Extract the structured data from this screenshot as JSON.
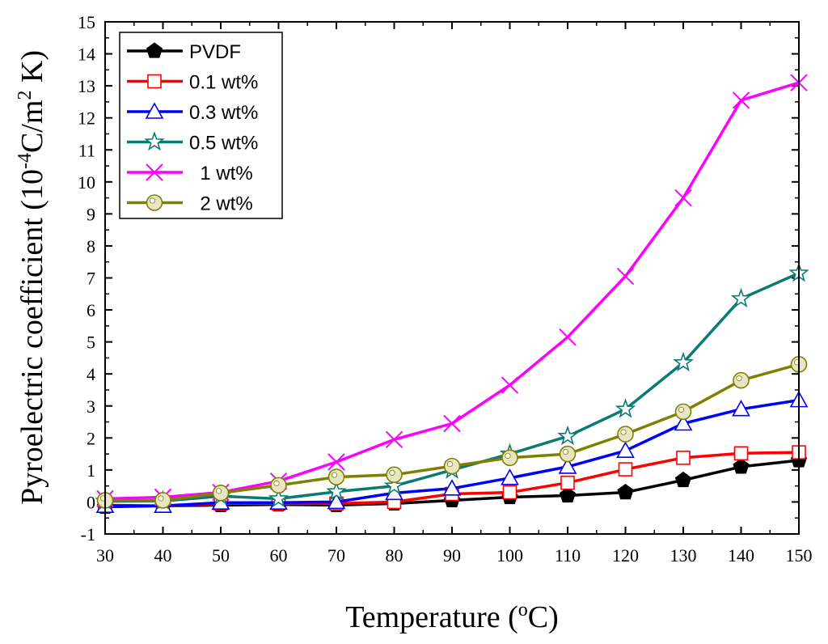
{
  "chart_data": {
    "type": "line",
    "xlabel": "Temperature (°C)",
    "xlabel_parts": {
      "pre": "Temperature (",
      "sup": "o",
      "post": "C)"
    },
    "ylabel": "Pyroelectric coefficient (10^-4C/m^2 K)",
    "ylabel_parts": {
      "pre": "Pyroelectric coefficient (10",
      "sup1": "-4",
      "mid": "C/m",
      "sup2": "2",
      "post": " K)"
    },
    "xlim": [
      30,
      150
    ],
    "ylim": [
      -1,
      15
    ],
    "xticks": [
      30,
      40,
      50,
      60,
      70,
      80,
      90,
      100,
      110,
      120,
      130,
      140,
      150
    ],
    "yticks": [
      -1,
      0,
      1,
      2,
      3,
      4,
      5,
      6,
      7,
      8,
      9,
      10,
      11,
      12,
      13,
      14,
      15
    ],
    "legend_position": "top-left",
    "x": [
      30,
      40,
      50,
      60,
      70,
      80,
      90,
      100,
      110,
      120,
      130,
      140,
      150
    ],
    "series": [
      {
        "name": "PVDF",
        "legend_label": "PVDF",
        "color": "#000000",
        "marker": "pentagon",
        "values": [
          -0.15,
          -0.12,
          -0.1,
          -0.08,
          -0.1,
          -0.05,
          0.05,
          0.15,
          0.2,
          0.3,
          0.68,
          1.1,
          1.3
        ]
      },
      {
        "name": "0.1 wt%",
        "legend_label": "0.1 wt%",
        "color": "#ff0000",
        "marker": "square",
        "values": [
          -0.1,
          -0.12,
          -0.05,
          -0.05,
          -0.05,
          0.0,
          0.25,
          0.3,
          0.6,
          1.02,
          1.38,
          1.52,
          1.55
        ]
      },
      {
        "name": "0.3 wt%",
        "legend_label": "0.3 wt%",
        "color": "#0000ff",
        "marker": "triangle",
        "values": [
          -0.12,
          -0.12,
          -0.02,
          -0.02,
          0.0,
          0.28,
          0.42,
          0.75,
          1.1,
          1.6,
          2.45,
          2.9,
          3.18
        ]
      },
      {
        "name": "0.5 wt%",
        "legend_label": "0.5 wt%",
        "color": "#0a7b74",
        "marker": "star",
        "values": [
          0.02,
          0.03,
          0.18,
          0.1,
          0.32,
          0.5,
          1.0,
          1.5,
          2.05,
          2.9,
          4.35,
          6.35,
          7.15
        ]
      },
      {
        "name": "1 wt%",
        "legend_label": "  1 wt%",
        "color": "#ff00ff",
        "marker": "x",
        "values": [
          0.1,
          0.15,
          0.3,
          0.65,
          1.25,
          1.95,
          2.45,
          3.65,
          5.15,
          7.05,
          9.5,
          12.55,
          13.1
        ]
      },
      {
        "name": "2 wt%",
        "legend_label": "  2 wt%",
        "color": "#808000",
        "marker": "circle",
        "values": [
          0.05,
          0.05,
          0.28,
          0.52,
          0.78,
          0.85,
          1.12,
          1.38,
          1.5,
          2.12,
          2.82,
          3.8,
          4.3
        ]
      }
    ]
  }
}
